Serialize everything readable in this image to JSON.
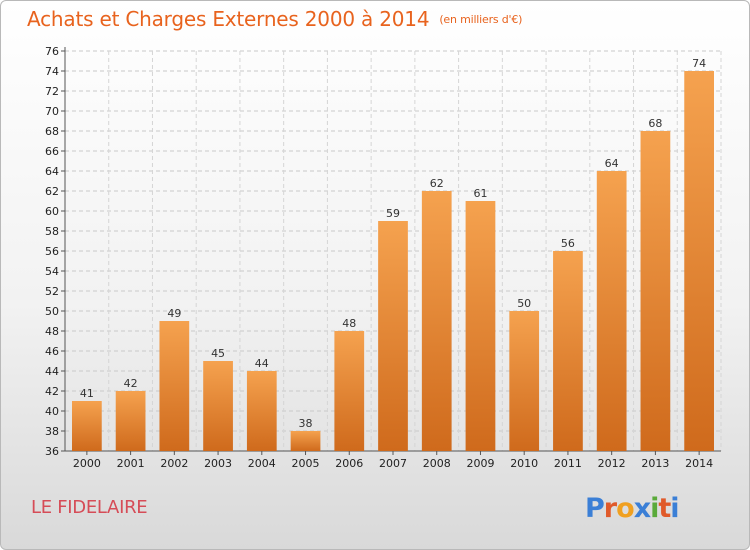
{
  "title": "Achats et Charges Externes 2000 à 2014",
  "unit": "(en milliers d'€)",
  "commune": "LE FIDELAIRE",
  "logo_text": "Proxiti",
  "colors": {
    "title": "#e8631e",
    "commune": "#d64c57",
    "bar_top": "#f5a24f",
    "bar_bottom": "#cf6a1c"
  },
  "chart_data": {
    "type": "bar",
    "categories": [
      "2000",
      "2001",
      "2002",
      "2003",
      "2004",
      "2005",
      "2006",
      "2007",
      "2008",
      "2009",
      "2010",
      "2011",
      "2012",
      "2013",
      "2014"
    ],
    "values": [
      41,
      42,
      49,
      45,
      44,
      38,
      48,
      59,
      62,
      61,
      50,
      56,
      64,
      68,
      74
    ],
    "title": "Achats et Charges Externes 2000 à 2014",
    "xlabel": "",
    "ylabel": "",
    "ylim": [
      36,
      76
    ],
    "yticks": [
      36,
      38,
      40,
      42,
      44,
      46,
      48,
      50,
      52,
      54,
      56,
      58,
      60,
      62,
      64,
      66,
      68,
      70,
      72,
      74,
      76
    ],
    "grid": true
  }
}
